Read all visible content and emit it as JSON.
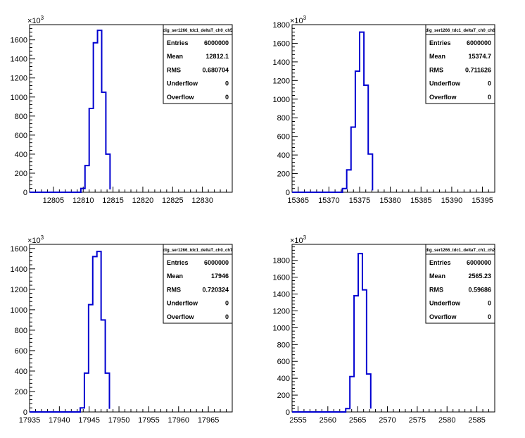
{
  "exponent_base": "10",
  "exponent_power": "3",
  "stats_labels": [
    "Entries",
    "Mean",
    "RMS",
    "Underflow",
    "Overflow"
  ],
  "chart_data": [
    {
      "type": "histogram",
      "stats_title": "dig_ser1266_tdc1_deltaT_ch0_ch5",
      "stats_values": [
        "6000000",
        "12812.1",
        "0.680704",
        "0",
        "0"
      ],
      "xlim": [
        12801.0,
        12835.0
      ],
      "ylim": [
        0,
        1760
      ],
      "x_ticks": [
        12805,
        12810,
        12815,
        12820,
        12825,
        12830
      ],
      "y_ticks": [
        0,
        200,
        400,
        600,
        800,
        1000,
        1200,
        1400,
        1600
      ],
      "bin_edges": [
        12809.6,
        12810.3,
        12811.0,
        12811.7,
        12812.4,
        12813.1,
        12813.8,
        12814.5
      ],
      "bin_values": [
        40,
        280,
        880,
        1570,
        1700,
        1050,
        400,
        30
      ],
      "line_color": "#0000d0"
    },
    {
      "type": "histogram",
      "stats_title": "dig_ser1266_tdc1_deltaT_ch0_ch6",
      "stats_values": [
        "6000000",
        "15374.7",
        "0.711626",
        "0",
        "0"
      ],
      "xlim": [
        15364.0,
        15397.0
      ],
      "ylim": [
        0,
        1800
      ],
      "x_ticks": [
        15365,
        15370,
        15375,
        15380,
        15385,
        15390,
        15395
      ],
      "y_ticks": [
        0,
        200,
        400,
        600,
        800,
        1000,
        1200,
        1400,
        1600,
        1800
      ],
      "bin_edges": [
        15372.2,
        15372.9,
        15373.6,
        15374.3,
        15375.0,
        15375.7,
        15376.4,
        15377.1
      ],
      "bin_values": [
        40,
        240,
        700,
        1300,
        1720,
        1150,
        410,
        20
      ],
      "line_color": "#0000d0"
    },
    {
      "type": "histogram",
      "stats_title": "dig_ser1266_tdc1_deltaT_ch0_ch7",
      "stats_values": [
        "6000000",
        "17946",
        "0.720324",
        "0",
        "0"
      ],
      "xlim": [
        17935.0,
        17969.0
      ],
      "ylim": [
        0,
        1640
      ],
      "x_ticks": [
        17935,
        17940,
        17945,
        17950,
        17955,
        17960,
        17965
      ],
      "y_ticks": [
        0,
        200,
        400,
        600,
        800,
        1000,
        1200,
        1400,
        1600
      ],
      "bin_edges": [
        17943.5,
        17944.2,
        17944.9,
        17945.6,
        17946.3,
        17947.0,
        17947.7,
        17948.4
      ],
      "bin_values": [
        40,
        380,
        1050,
        1520,
        1570,
        900,
        380,
        30
      ],
      "line_color": "#0000d0"
    },
    {
      "type": "histogram",
      "stats_title": "dig_ser1266_tdc1_deltaT_ch1_ch2",
      "stats_values": [
        "6000000",
        "2565.23",
        "0.59686",
        "0",
        "0"
      ],
      "xlim": [
        2554.0,
        2588.0
      ],
      "ylim": [
        0,
        1990
      ],
      "x_ticks": [
        2555,
        2560,
        2565,
        2570,
        2575,
        2580,
        2585
      ],
      "y_ticks": [
        0,
        200,
        400,
        600,
        800,
        1000,
        1200,
        1400,
        1600,
        1800
      ],
      "bin_edges": [
        2563.0,
        2563.7,
        2564.4,
        2565.1,
        2565.8,
        2566.5,
        2567.2
      ],
      "bin_values": [
        40,
        420,
        1380,
        1880,
        1450,
        450,
        40
      ],
      "line_color": "#0000d0"
    }
  ]
}
